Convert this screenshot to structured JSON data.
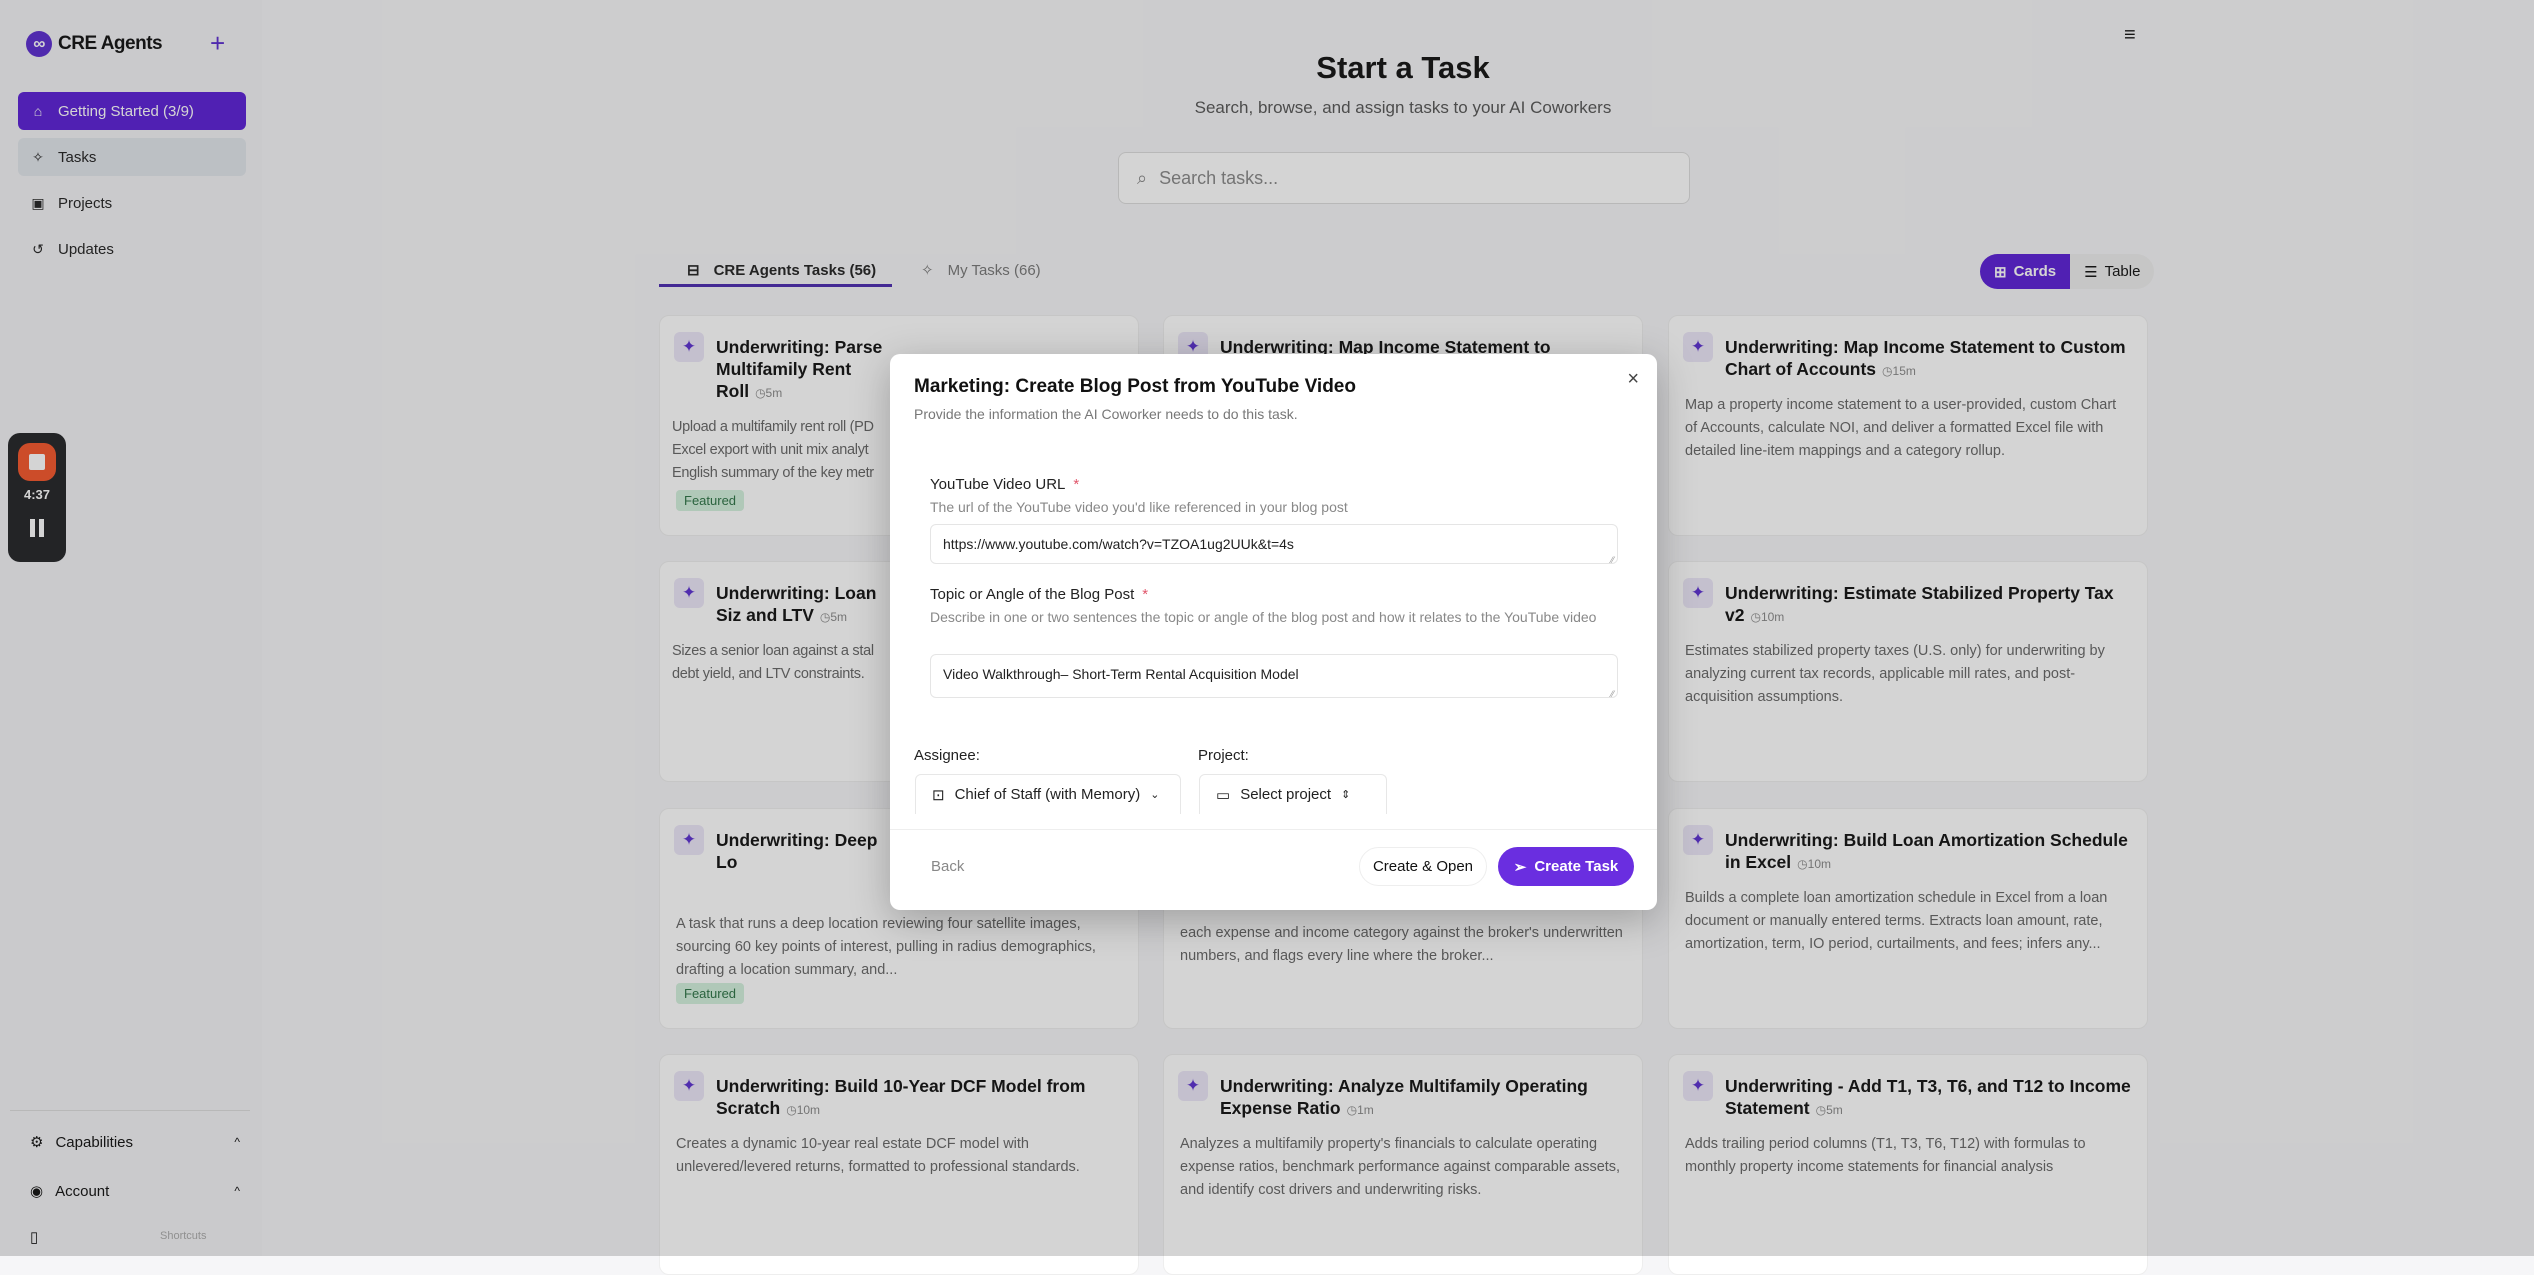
{
  "app": {
    "name": "CRE Agents",
    "logo_glyph": "∞",
    "accent": "#5a1fd6"
  },
  "sidebar": {
    "items": [
      {
        "label": "Getting Started (3/9)",
        "icon": "home-icon"
      },
      {
        "label": "Tasks",
        "icon": "sparkle-icon"
      },
      {
        "label": "Projects",
        "icon": "folder-plus-icon"
      },
      {
        "label": "Updates",
        "icon": "history-icon"
      }
    ],
    "bottom": [
      {
        "label": "Capabilities",
        "icon": "gear-icon"
      },
      {
        "label": "Account",
        "icon": "user-circle-icon"
      }
    ],
    "shortcuts": "Shortcuts"
  },
  "recorder": {
    "time": "4:37"
  },
  "header": {
    "title": "Start a Task",
    "subtitle": "Search, browse, and assign tasks to your AI Coworkers"
  },
  "search": {
    "placeholder": "Search tasks..."
  },
  "tabs": [
    {
      "label": "CRE Agents Tasks (56)",
      "active": true
    },
    {
      "label": "My Tasks (66)",
      "active": false
    }
  ],
  "view_toggle": {
    "cards": "Cards",
    "table": "Table",
    "selected": "Cards"
  },
  "featured_label": "Featured",
  "cards": [
    {
      "title": "Underwriting: Parse Multifamily Rent Roll",
      "time": "5m",
      "desc": "Upload a multifamily rent roll (PD",
      "desc2": "Excel export with unit mix analyt",
      "desc3": "English summary of the key metr",
      "featured": true
    },
    {
      "title": "Underwriting: Map Income Statement to Standard",
      "time": "",
      "desc": "",
      "featured": false
    },
    {
      "title": "Underwriting: Map Income Statement to Custom Chart of Accounts",
      "time": "15m",
      "desc": "Map a property income statement to a user-provided, custom Chart of Accounts, calculate NOI, and deliver a formatted Excel file with detailed line-item mappings and a category rollup.",
      "featured": false
    },
    {
      "title": "Underwriting: Loan Siz and LTV",
      "time": "5m",
      "desc": "Sizes a senior loan against a stal debt yield, and LTV constraints.",
      "featured": false
    },
    {
      "title": "",
      "time": "",
      "desc": "",
      "featured": false
    },
    {
      "title": "Underwriting: Estimate Stabilized Property Tax v2",
      "time": "10m",
      "desc": "Estimates stabilized property taxes (U.S. only) for underwriting by analyzing current tax records, applicable mill rates, and post-acquisition assumptions.",
      "featured": false
    },
    {
      "title": "Underwriting: Deep Lo",
      "time": "",
      "desc": "A task that runs a deep location reviewing four satellite images, sourcing 60 key points of interest, pulling in radius demographics, drafting a location summary, and...",
      "featured": true
    },
    {
      "title": "",
      "time": "",
      "desc": "each expense and income category against the broker's underwritten numbers, and flags every line where the broker...",
      "featured": false
    },
    {
      "title": "Underwriting: Build Loan Amortization Schedule in Excel",
      "time": "10m",
      "desc": "Builds a complete loan amortization schedule in Excel from a loan document or manually entered terms. Extracts loan amount, rate, amortization, term, IO period, curtailments, and fees; infers any...",
      "featured": false
    },
    {
      "title": "Underwriting: Build 10-Year DCF Model from Scratch",
      "time": "10m",
      "desc": "Creates a dynamic 10-year real estate DCF model with unlevered/levered returns, formatted to professional standards.",
      "featured": false
    },
    {
      "title": "Underwriting: Analyze Multifamily Operating Expense Ratio",
      "time": "1m",
      "desc": "Analyzes a multifamily property's financials to calculate operating expense ratios, benchmark performance against comparable assets, and identify cost drivers and underwriting risks.",
      "featured": false
    },
    {
      "title": "Underwriting - Add T1, T3, T6, and T12 to Income Statement",
      "time": "5m",
      "desc": "Adds trailing period columns (T1, T3, T6, T12) with formulas to monthly property income statements for financial analysis",
      "featured": false
    }
  ],
  "modal": {
    "title": "Marketing: Create Blog Post from YouTube Video",
    "subtitle": "Provide the information the AI Coworker needs to do this task.",
    "fields": [
      {
        "label": "YouTube Video URL",
        "required": "*",
        "help": "The url of the YouTube video you'd like referenced in your blog post",
        "value": "https://www.youtube.com/watch?v=TZOA1ug2UUk&t=4s"
      },
      {
        "label": "Topic or Angle of the Blog Post",
        "required": "*",
        "help": "Describe in one or two sentences the topic or angle of the blog post and how it relates to the YouTube video",
        "value": "Video Walkthrough– Short-Term Rental Acquisition Model"
      }
    ],
    "assignee_label": "Assignee:",
    "assignee_value": "Chief of Staff (with Memory)",
    "project_label": "Project:",
    "project_value": "Select project",
    "back": "Back",
    "create_open": "Create & Open",
    "create_task": "Create Task"
  }
}
